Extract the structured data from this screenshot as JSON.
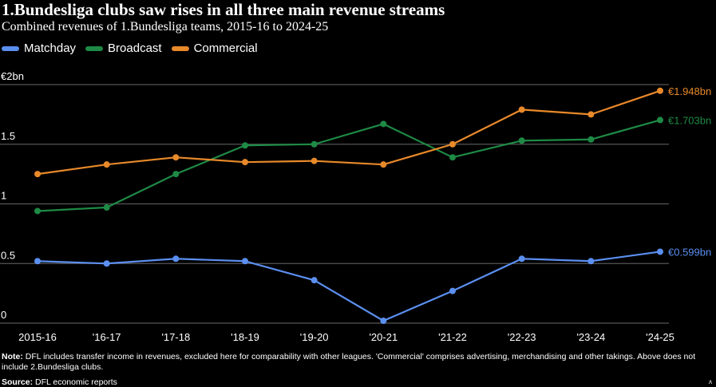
{
  "title": "1.Bundesliga clubs saw rises in all three main revenue streams",
  "subtitle": "Combined revenues of 1.Bundesliga teams, 2015-16 to 2024-25",
  "colors": {
    "Matchday": "#5b8ff0",
    "Broadcast": "#1e8a45",
    "Commercial": "#e8892a",
    "grid": "#555555",
    "background": "#000000"
  },
  "chart_data": {
    "type": "line",
    "title": "1.Bundesliga clubs saw rises in all three main revenue streams",
    "subtitle": "Combined revenues of 1.Bundesliga teams, 2015-16 to 2024-25",
    "xlabel": "",
    "ylabel": "",
    "categories": [
      "2015-16",
      "'16-17",
      "'17-18",
      "'18-19",
      "'19-20",
      "'20-21",
      "'21-22",
      "'22-23",
      "'23-24",
      "'24-25"
    ],
    "ylim": [
      0,
      2
    ],
    "yticks": [
      0,
      0.5,
      1,
      1.5,
      2
    ],
    "ytick_labels": [
      "0",
      "0.5",
      "1",
      "1.5",
      "€2bn"
    ],
    "grid": true,
    "legend_position": "top-left",
    "series": [
      {
        "name": "Matchday",
        "values": [
          0.52,
          0.5,
          0.54,
          0.52,
          0.36,
          0.02,
          0.27,
          0.54,
          0.52,
          0.599
        ],
        "end_label": "€0.599bn"
      },
      {
        "name": "Broadcast",
        "values": [
          0.94,
          0.97,
          1.25,
          1.49,
          1.5,
          1.67,
          1.39,
          1.53,
          1.54,
          1.703
        ],
        "end_label": "€1.703bn"
      },
      {
        "name": "Commercial",
        "values": [
          1.25,
          1.33,
          1.39,
          1.35,
          1.36,
          1.33,
          1.5,
          1.79,
          1.75,
          1.948
        ],
        "end_label": "€1.948bn"
      }
    ]
  },
  "footer": {
    "note_label": "Note:",
    "note": "DFL includes transfer income in revenues, excluded here for comparability with other leagues. 'Commercial' comprises advertising, merchandising and other takings. Above does not include 2.Bundesliga clubs.",
    "source_label": "Source:",
    "source": "DFL economic reports",
    "logo": "ʌ"
  }
}
